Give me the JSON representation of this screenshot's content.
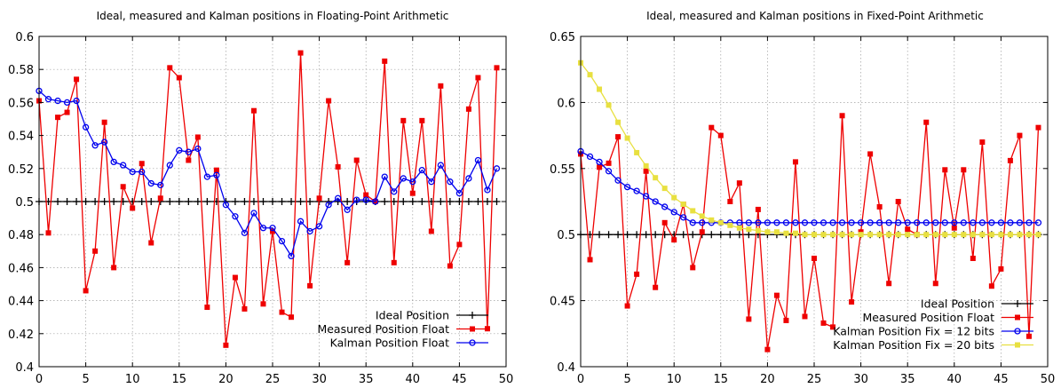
{
  "chart_data": [
    {
      "type": "line",
      "title": "Ideal, measured and Kalman positions in Floating-Point Arithmetic",
      "xlabel": "",
      "ylabel": "",
      "xlim": [
        0,
        50
      ],
      "ylim": [
        0.4,
        0.6
      ],
      "xticks": [
        0,
        5,
        10,
        15,
        20,
        25,
        30,
        35,
        40,
        45,
        50
      ],
      "xtick_labels": [
        "0",
        "5",
        "10",
        "15",
        "20",
        "25",
        "30",
        "35",
        "40",
        "45",
        "50"
      ],
      "yticks": [
        0.4,
        0.42,
        0.44,
        0.46,
        0.48,
        0.5,
        0.52,
        0.54,
        0.56,
        0.58,
        0.6
      ],
      "ytick_labels": [
        "0.4",
        "0.42",
        "0.44",
        "0.46",
        "0.48",
        "0.5",
        "0.52",
        "0.54",
        "0.56",
        "0.58",
        "0.6"
      ],
      "grid": true,
      "legend_position": "bottom-right",
      "x": [
        0,
        1,
        2,
        3,
        4,
        5,
        6,
        7,
        8,
        9,
        10,
        11,
        12,
        13,
        14,
        15,
        16,
        17,
        18,
        19,
        20,
        21,
        22,
        23,
        24,
        25,
        26,
        27,
        28,
        29,
        30,
        31,
        32,
        33,
        34,
        35,
        36,
        37,
        38,
        39,
        40,
        41,
        42,
        43,
        44,
        45,
        46,
        47,
        48,
        49
      ],
      "series": [
        {
          "name": "Ideal Position",
          "color": "#000000",
          "marker": "plus",
          "values": [
            0.5,
            0.5,
            0.5,
            0.5,
            0.5,
            0.5,
            0.5,
            0.5,
            0.5,
            0.5,
            0.5,
            0.5,
            0.5,
            0.5,
            0.5,
            0.5,
            0.5,
            0.5,
            0.5,
            0.5,
            0.5,
            0.5,
            0.5,
            0.5,
            0.5,
            0.5,
            0.5,
            0.5,
            0.5,
            0.5,
            0.5,
            0.5,
            0.5,
            0.5,
            0.5,
            0.5,
            0.5,
            0.5,
            0.5,
            0.5,
            0.5,
            0.5,
            0.5,
            0.5,
            0.5,
            0.5,
            0.5,
            0.5,
            0.5,
            0.5
          ]
        },
        {
          "name": "Measured Position Float",
          "color": "#ee0000",
          "marker": "square",
          "values": [
            0.561,
            0.481,
            0.551,
            0.554,
            0.574,
            0.446,
            0.47,
            0.548,
            0.46,
            0.509,
            0.496,
            0.523,
            0.475,
            0.502,
            0.581,
            0.575,
            0.525,
            0.539,
            0.436,
            0.519,
            0.413,
            0.454,
            0.435,
            0.555,
            0.438,
            0.482,
            0.433,
            0.43,
            0.59,
            0.449,
            0.502,
            0.561,
            0.521,
            0.463,
            0.525,
            0.504,
            0.5,
            0.585,
            0.463,
            0.549,
            0.505,
            0.549,
            0.482,
            0.57,
            0.461,
            0.474,
            0.556,
            0.575,
            0.423,
            0.581
          ]
        },
        {
          "name": "Kalman Position Float",
          "color": "#0000ee",
          "marker": "circle",
          "values": [
            0.567,
            0.562,
            0.561,
            0.56,
            0.561,
            0.545,
            0.534,
            0.536,
            0.524,
            0.522,
            0.518,
            0.518,
            0.511,
            0.51,
            0.522,
            0.531,
            0.53,
            0.532,
            0.515,
            0.516,
            0.498,
            0.491,
            0.481,
            0.493,
            0.484,
            0.484,
            0.476,
            0.467,
            0.488,
            0.482,
            0.485,
            0.498,
            0.502,
            0.495,
            0.501,
            0.501,
            0.5,
            0.515,
            0.506,
            0.514,
            0.512,
            0.519,
            0.512,
            0.522,
            0.512,
            0.505,
            0.514,
            0.525,
            0.507,
            0.52
          ]
        }
      ]
    },
    {
      "type": "line",
      "title": "Ideal, measured and Kalman positions in Fixed-Point Arithmetic",
      "xlabel": "",
      "ylabel": "",
      "xlim": [
        0,
        50
      ],
      "ylim": [
        0.4,
        0.65
      ],
      "xticks": [
        0,
        5,
        10,
        15,
        20,
        25,
        30,
        35,
        40,
        45,
        50
      ],
      "xtick_labels": [
        "0",
        "5",
        "10",
        "15",
        "20",
        "25",
        "30",
        "35",
        "40",
        "45",
        "50"
      ],
      "yticks": [
        0.4,
        0.45,
        0.5,
        0.55,
        0.6,
        0.65
      ],
      "ytick_labels": [
        "0.4",
        "0.45",
        "0.5",
        "0.55",
        "0.6",
        "0.65"
      ],
      "grid": true,
      "legend_position": "bottom-right",
      "x": [
        0,
        1,
        2,
        3,
        4,
        5,
        6,
        7,
        8,
        9,
        10,
        11,
        12,
        13,
        14,
        15,
        16,
        17,
        18,
        19,
        20,
        21,
        22,
        23,
        24,
        25,
        26,
        27,
        28,
        29,
        30,
        31,
        32,
        33,
        34,
        35,
        36,
        37,
        38,
        39,
        40,
        41,
        42,
        43,
        44,
        45,
        46,
        47,
        48,
        49
      ],
      "series": [
        {
          "name": "Ideal Position",
          "color": "#000000",
          "marker": "plus",
          "values": [
            0.5,
            0.5,
            0.5,
            0.5,
            0.5,
            0.5,
            0.5,
            0.5,
            0.5,
            0.5,
            0.5,
            0.5,
            0.5,
            0.5,
            0.5,
            0.5,
            0.5,
            0.5,
            0.5,
            0.5,
            0.5,
            0.5,
            0.5,
            0.5,
            0.5,
            0.5,
            0.5,
            0.5,
            0.5,
            0.5,
            0.5,
            0.5,
            0.5,
            0.5,
            0.5,
            0.5,
            0.5,
            0.5,
            0.5,
            0.5,
            0.5,
            0.5,
            0.5,
            0.5,
            0.5,
            0.5,
            0.5,
            0.5,
            0.5,
            0.5
          ]
        },
        {
          "name": "Measured Position Float",
          "color": "#ee0000",
          "marker": "square",
          "values": [
            0.561,
            0.481,
            0.551,
            0.554,
            0.574,
            0.446,
            0.47,
            0.548,
            0.46,
            0.509,
            0.496,
            0.523,
            0.475,
            0.502,
            0.581,
            0.575,
            0.525,
            0.539,
            0.436,
            0.519,
            0.413,
            0.454,
            0.435,
            0.555,
            0.438,
            0.482,
            0.433,
            0.43,
            0.59,
            0.449,
            0.502,
            0.561,
            0.521,
            0.463,
            0.525,
            0.504,
            0.5,
            0.585,
            0.463,
            0.549,
            0.505,
            0.549,
            0.482,
            0.57,
            0.461,
            0.474,
            0.556,
            0.575,
            0.423,
            0.581
          ]
        },
        {
          "name": "Kalman Position Fix = 12 bits",
          "color": "#0000ee",
          "marker": "circle",
          "values": [
            0.563,
            0.559,
            0.555,
            0.548,
            0.541,
            0.536,
            0.533,
            0.529,
            0.525,
            0.521,
            0.517,
            0.513,
            0.509,
            0.509,
            0.509,
            0.509,
            0.509,
            0.509,
            0.509,
            0.509,
            0.509,
            0.509,
            0.509,
            0.509,
            0.509,
            0.509,
            0.509,
            0.509,
            0.509,
            0.509,
            0.509,
            0.509,
            0.509,
            0.509,
            0.509,
            0.509,
            0.509,
            0.509,
            0.509,
            0.509,
            0.509,
            0.509,
            0.509,
            0.509,
            0.509,
            0.509,
            0.509,
            0.509,
            0.509,
            0.509
          ]
        },
        {
          "name": "Kalman Position Fix = 20 bits",
          "color": "#e8e040",
          "marker": "square",
          "values": [
            0.63,
            0.621,
            0.61,
            0.598,
            0.585,
            0.573,
            0.562,
            0.552,
            0.543,
            0.535,
            0.528,
            0.523,
            0.518,
            0.514,
            0.511,
            0.509,
            0.507,
            0.505,
            0.504,
            0.503,
            0.502,
            0.502,
            0.501,
            0.501,
            0.5,
            0.5,
            0.5,
            0.5,
            0.5,
            0.5,
            0.5,
            0.5,
            0.5,
            0.5,
            0.5,
            0.5,
            0.5,
            0.5,
            0.5,
            0.5,
            0.5,
            0.5,
            0.5,
            0.5,
            0.5,
            0.5,
            0.5,
            0.5,
            0.5,
            0.5
          ]
        }
      ]
    }
  ]
}
